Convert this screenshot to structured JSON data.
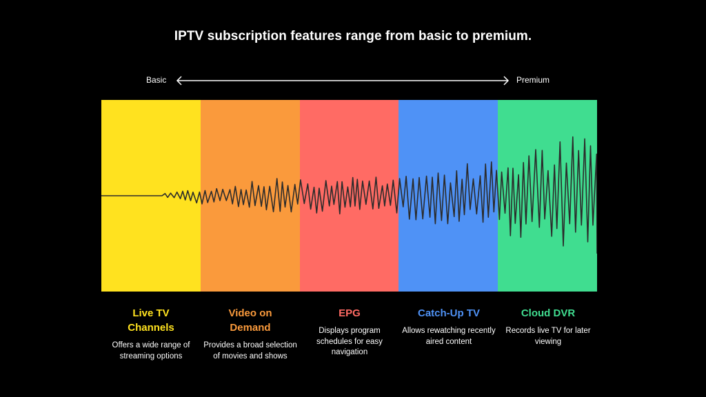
{
  "title": "IPTV subscription features range from basic to premium.",
  "scale": {
    "left_label": "Basic",
    "right_label": "Premium"
  },
  "features": [
    {
      "title": "Live TV Channels",
      "description": "Offers a wide range of streaming options",
      "color": "#FFE21F"
    },
    {
      "title": "Video on Demand",
      "description": "Provides a broad selection of movies and shows",
      "color": "#FA9A3C"
    },
    {
      "title": "EPG",
      "description": "Displays program schedules for easy navigation",
      "color": "#FF6B64"
    },
    {
      "title": "Catch-Up TV",
      "description": "Allows rewatching recently aired content",
      "color": "#4F92F6"
    },
    {
      "title": "Cloud DVR",
      "description": "Records live TV for later viewing",
      "color": "#40DD90"
    }
  ],
  "colors": {
    "background": "#000000",
    "text": "#FFFFFF",
    "waveform": "#2B2B2B"
  }
}
